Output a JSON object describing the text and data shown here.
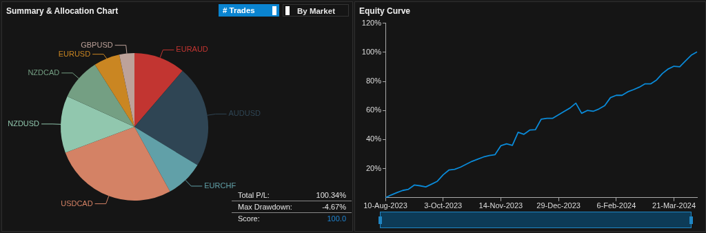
{
  "chart_data": [
    {
      "type": "pie",
      "title": "Summary & Allocation Chart",
      "categories": [
        "EURAUD",
        "AUDUSD",
        "EURCHF",
        "USDCAD",
        "NZDUSD",
        "NZDCAD",
        "EURUSD",
        "GBPUSD"
      ],
      "values": [
        11.3,
        22.4,
        8.3,
        27.3,
        12.5,
        9.2,
        5.7,
        3.3
      ],
      "colors": [
        "#c23531",
        "#2f4554",
        "#61a0a8",
        "#d48265",
        "#91c7ae",
        "#749f83",
        "#ca8622",
        "#bda29a"
      ],
      "legend": false,
      "annotations": [
        "# Trades",
        "By Market",
        "Total P/L:",
        "100.34%",
        "Max Drawdown:",
        "-4.67%",
        "Score:",
        "100.0"
      ]
    },
    {
      "type": "line",
      "title": "Equity Curve",
      "categories": [
        "10-Aug-2023",
        null,
        null,
        null,
        null,
        null,
        null,
        null,
        null,
        null,
        "3-Oct-2023",
        null,
        null,
        null,
        null,
        null,
        null,
        null,
        null,
        null,
        "14-Nov-2023",
        null,
        null,
        null,
        null,
        null,
        null,
        null,
        null,
        null,
        "29-Dec-2023",
        null,
        null,
        null,
        null,
        null,
        null,
        null,
        null,
        null,
        "6-Feb-2024",
        null,
        null,
        null,
        null,
        null,
        null,
        null,
        null,
        null,
        "21-Mar-2024",
        null,
        null,
        null,
        null
      ],
      "series": [
        {
          "color": "#0a8ad8",
          "values": [
            0,
            1.9,
            3.5,
            5,
            5.8,
            8.7,
            8.2,
            7.4,
            9.3,
            11.3,
            15.7,
            19,
            19.5,
            21,
            23,
            25,
            26.5,
            28,
            29,
            29.6,
            35.7,
            37,
            36,
            45,
            43.6,
            46.5,
            46.8,
            54,
            54.6,
            54.6,
            57,
            59.4,
            61.7,
            65,
            58,
            60,
            59.4,
            61,
            63.3,
            68.8,
            70.4,
            70.4,
            72.8,
            74.3,
            76,
            78.3,
            78.3,
            81,
            85.4,
            88.5,
            90.4,
            90,
            94,
            98,
            100.3
          ]
        }
      ],
      "ylim": [
        0,
        120
      ],
      "yticks": [
        {
          "value": 20,
          "label": "20%"
        },
        {
          "value": 40,
          "label": "40%"
        },
        {
          "value": 60,
          "label": "60%"
        },
        {
          "value": 80,
          "label": "80%"
        },
        {
          "value": 100,
          "label": "100%"
        },
        {
          "value": 120,
          "label": "120%"
        }
      ],
      "grid": false,
      "legend": false,
      "marker": "none",
      "line_style": "solid"
    }
  ]
}
